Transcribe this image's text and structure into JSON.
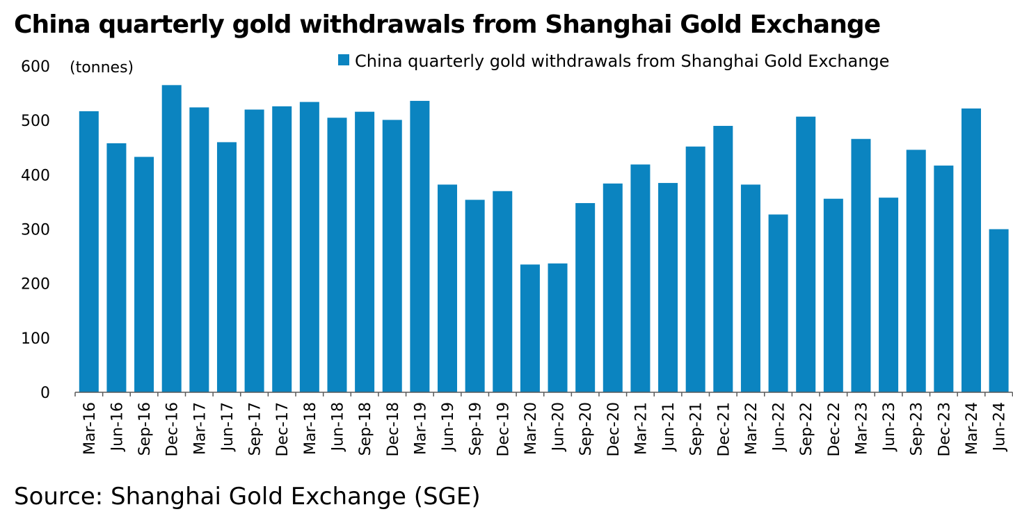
{
  "title": "China quarterly gold withdrawals from Shanghai Gold Exchange",
  "source": "Source: Shanghai Gold Exchange (SGE)",
  "colors": {
    "bar": "#0b84c0",
    "axis": "#595959"
  },
  "chart_data": {
    "type": "bar",
    "title": "China quarterly gold withdrawals from Shanghai Gold Exchange",
    "ylabel": "(tonnes)",
    "xlabel": "",
    "ylim": [
      0,
      600
    ],
    "yticks": [
      0,
      100,
      200,
      300,
      400,
      500,
      600
    ],
    "grid": false,
    "legend_position": "top",
    "categories": [
      "Mar-16",
      "Jun-16",
      "Sep-16",
      "Dec-16",
      "Mar-17",
      "Jun-17",
      "Sep-17",
      "Dec-17",
      "Mar-18",
      "Jun-18",
      "Sep-18",
      "Dec-18",
      "Mar-19",
      "Jun-19",
      "Sep-19",
      "Dec-19",
      "Mar-20",
      "Jun-20",
      "Sep-20",
      "Dec-20",
      "Mar-21",
      "Jun-21",
      "Sep-21",
      "Dec-21",
      "Mar-22",
      "Jun-22",
      "Sep-22",
      "Dec-22",
      "Mar-23",
      "Jun-23",
      "Sep-23",
      "Dec-23",
      "Mar-24",
      "Jun-24"
    ],
    "series": [
      {
        "name": "China quarterly gold withdrawals from Shanghai Gold Exchange",
        "values": [
          517,
          458,
          433,
          565,
          524,
          460,
          520,
          526,
          534,
          505,
          516,
          501,
          536,
          382,
          354,
          370,
          235,
          237,
          348,
          384,
          419,
          385,
          452,
          490,
          382,
          327,
          507,
          356,
          466,
          358,
          446,
          417,
          522,
          300
        ]
      }
    ]
  }
}
